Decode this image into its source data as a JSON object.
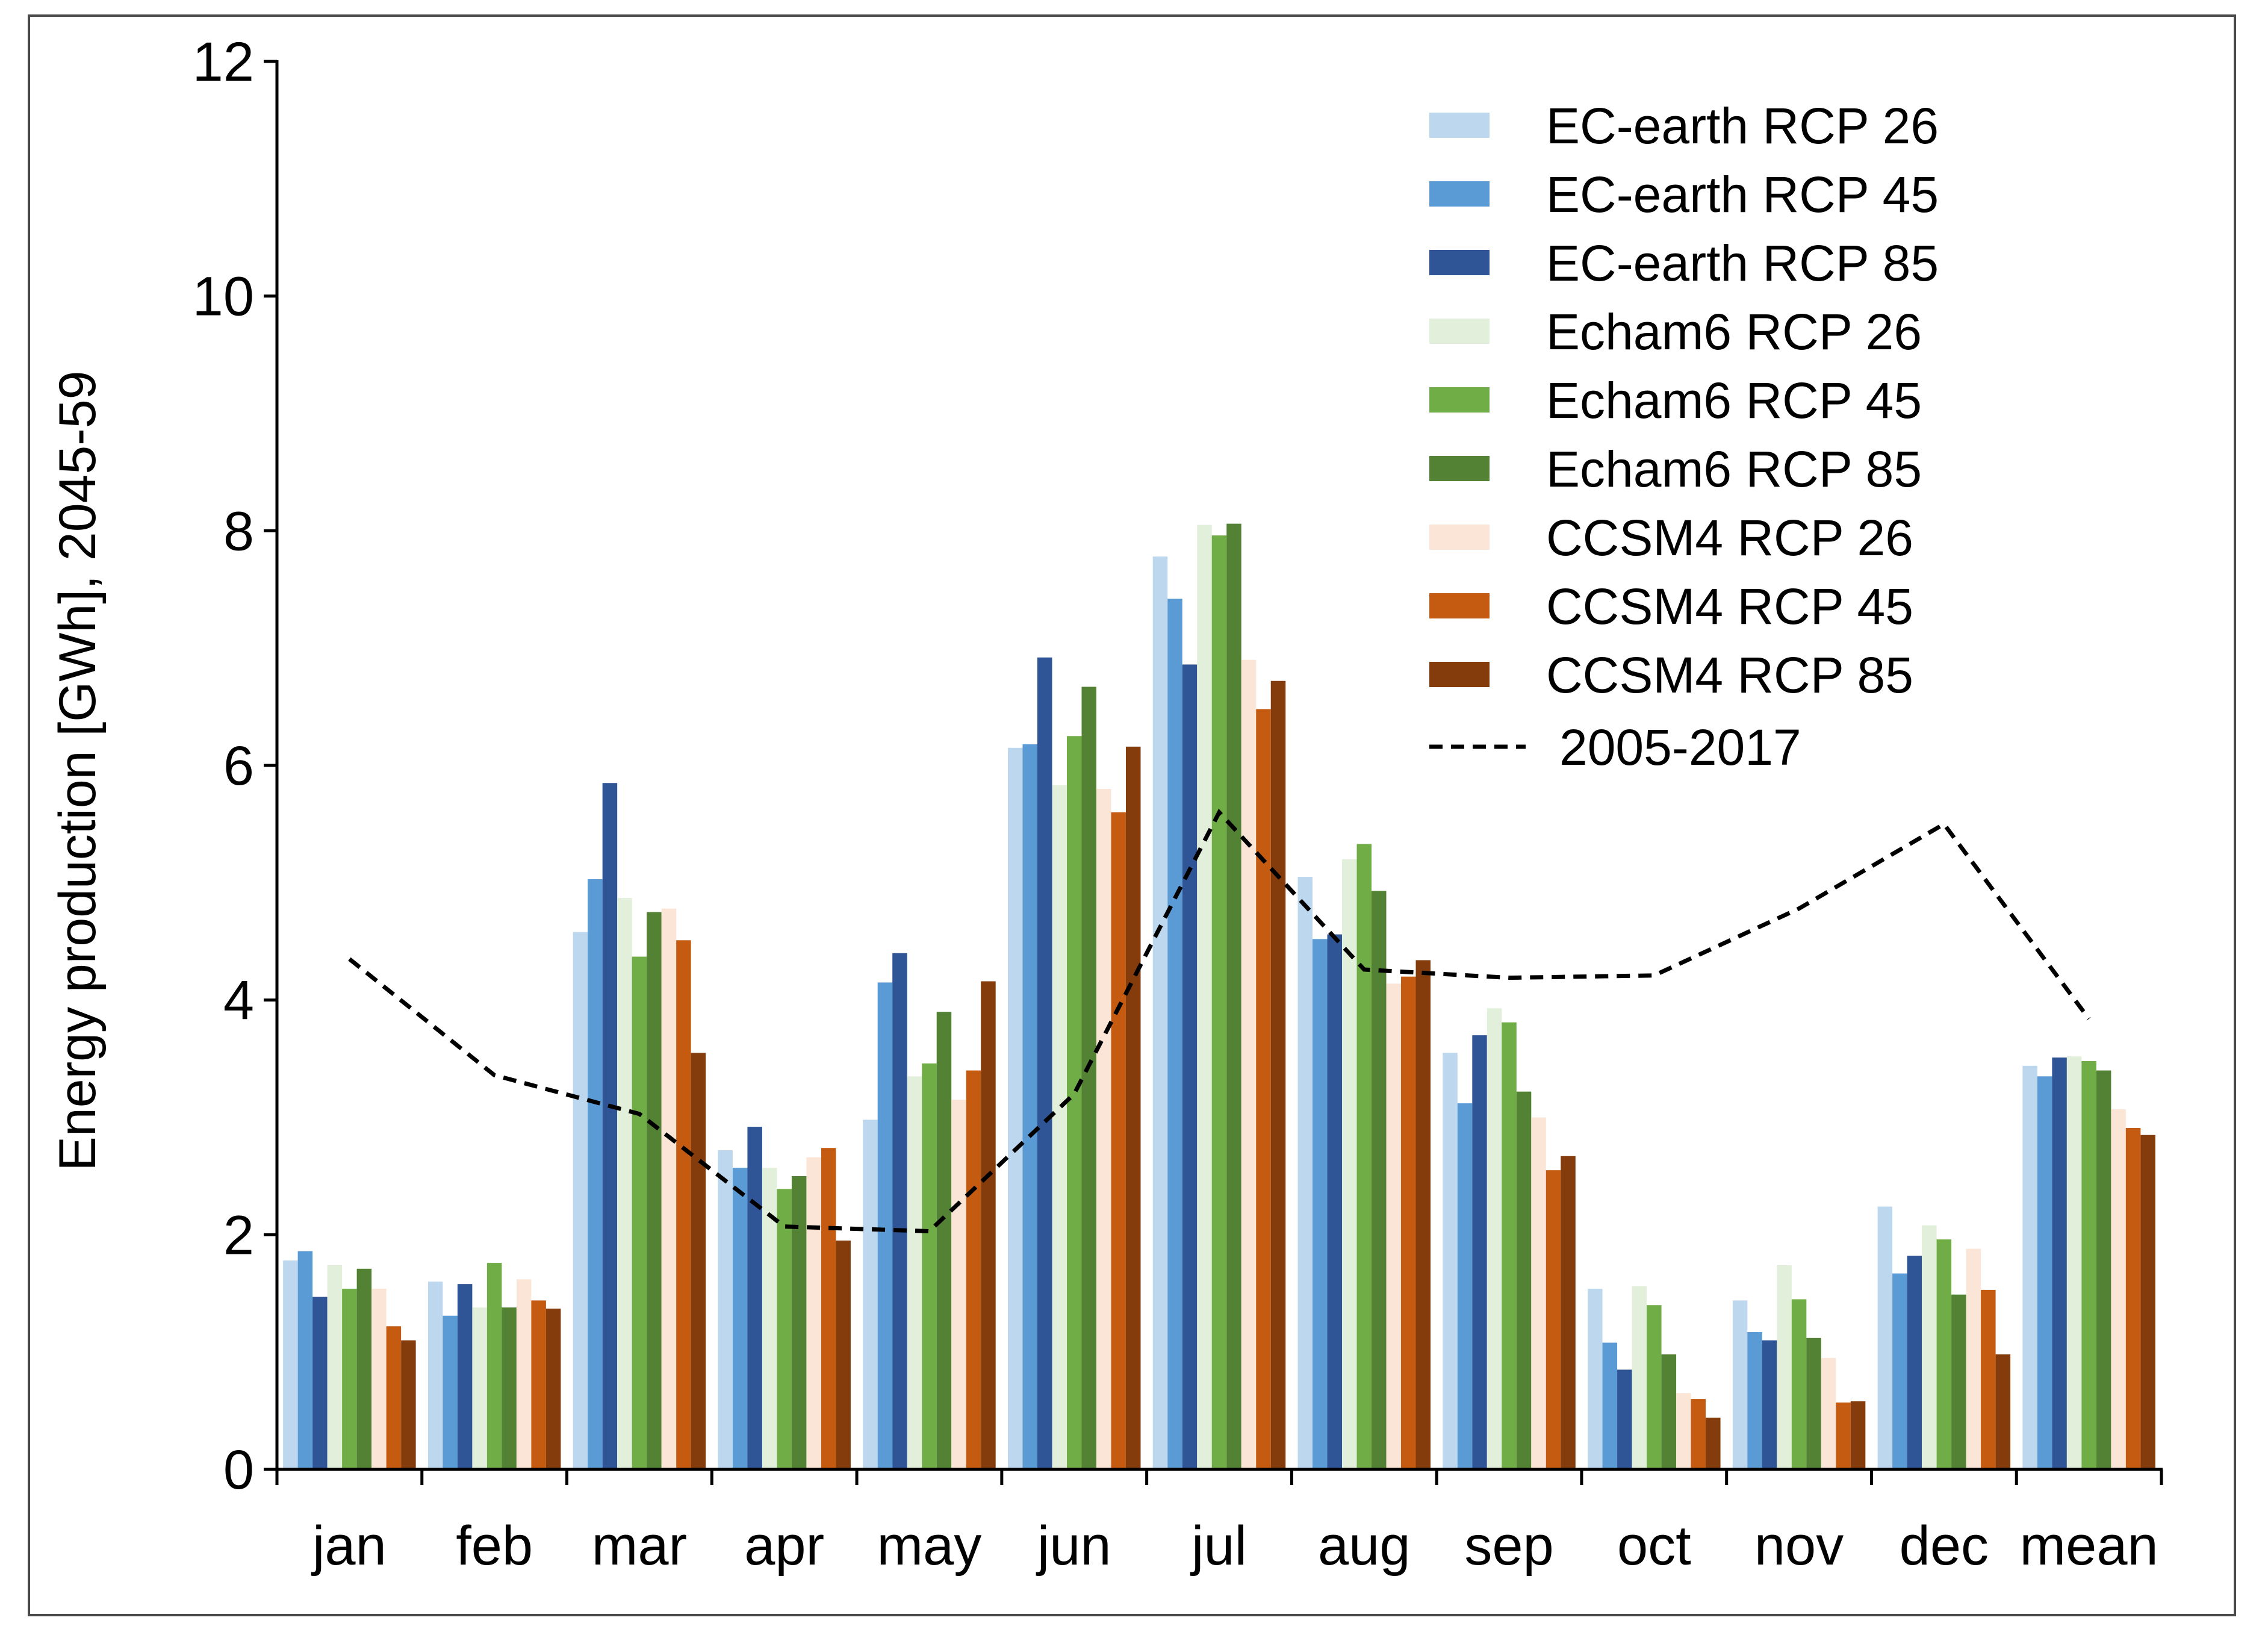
{
  "chart_data": {
    "type": "bar",
    "title": "",
    "xlabel": "",
    "ylabel": "Energy production [GWh], 2045-59",
    "ylim": [
      0,
      12
    ],
    "yticks": [
      "0",
      "2",
      "4",
      "6",
      "8",
      "10",
      "12"
    ],
    "grid": false,
    "legend_position": "top-right",
    "categories": [
      "jan",
      "feb",
      "mar",
      "apr",
      "may",
      "jun",
      "jul",
      "aug",
      "sep",
      "oct",
      "nov",
      "dec",
      "mean"
    ],
    "series": [
      {
        "name": "EC-earth RCP 26",
        "color": "#bdd7ee",
        "values": [
          1.78,
          1.6,
          4.58,
          2.72,
          2.98,
          6.15,
          7.78,
          5.05,
          3.55,
          1.54,
          1.44,
          2.24,
          3.44
        ]
      },
      {
        "name": "EC-earth RCP 45",
        "color": "#5b9bd5",
        "values": [
          1.86,
          1.31,
          5.03,
          2.57,
          4.15,
          6.18,
          7.42,
          4.52,
          3.12,
          1.08,
          1.17,
          1.67,
          3.35
        ]
      },
      {
        "name": "EC-earth RCP 85",
        "color": "#2f5597",
        "values": [
          1.47,
          1.58,
          5.85,
          2.92,
          4.4,
          6.92,
          6.86,
          4.56,
          3.7,
          0.85,
          1.1,
          1.82,
          3.51
        ]
      },
      {
        "name": "Echam6 RCP 26",
        "color": "#e2efda",
        "values": [
          1.74,
          1.38,
          4.87,
          2.57,
          3.35,
          5.83,
          8.05,
          5.2,
          3.93,
          1.56,
          1.74,
          2.08,
          3.52
        ]
      },
      {
        "name": "Echam6 RCP 45",
        "color": "#70ad47",
        "values": [
          1.54,
          1.76,
          4.37,
          2.39,
          3.46,
          6.25,
          7.96,
          5.33,
          3.81,
          1.4,
          1.45,
          1.96,
          3.48
        ]
      },
      {
        "name": "Echam6 RCP 85",
        "color": "#548235",
        "values": [
          1.71,
          1.38,
          4.75,
          2.5,
          3.9,
          6.67,
          8.06,
          4.93,
          3.22,
          0.98,
          1.12,
          1.49,
          3.4
        ]
      },
      {
        "name": "CCSM4 RCP 26",
        "color": "#fbe5d6",
        "values": [
          1.54,
          1.62,
          4.78,
          2.66,
          3.15,
          5.8,
          6.9,
          4.14,
          3.0,
          0.65,
          0.95,
          1.88,
          3.07
        ]
      },
      {
        "name": "CCSM4 RCP 45",
        "color": "#c55a11",
        "values": [
          1.22,
          1.44,
          4.51,
          2.74,
          3.4,
          5.6,
          6.48,
          4.2,
          2.55,
          0.6,
          0.57,
          1.53,
          2.91
        ]
      },
      {
        "name": "CCSM4 RCP 85",
        "color": "#843c0c",
        "values": [
          1.1,
          1.37,
          3.55,
          1.95,
          4.16,
          6.16,
          6.72,
          4.34,
          2.67,
          0.44,
          0.58,
          0.98,
          2.85
        ]
      }
    ],
    "line": {
      "name": "2005-2017",
      "color": "#000000",
      "style": "dashed",
      "values": [
        4.35,
        3.36,
        3.03,
        2.07,
        2.03,
        3.2,
        5.6,
        4.26,
        4.19,
        4.21,
        4.78,
        5.5,
        3.84
      ]
    }
  }
}
